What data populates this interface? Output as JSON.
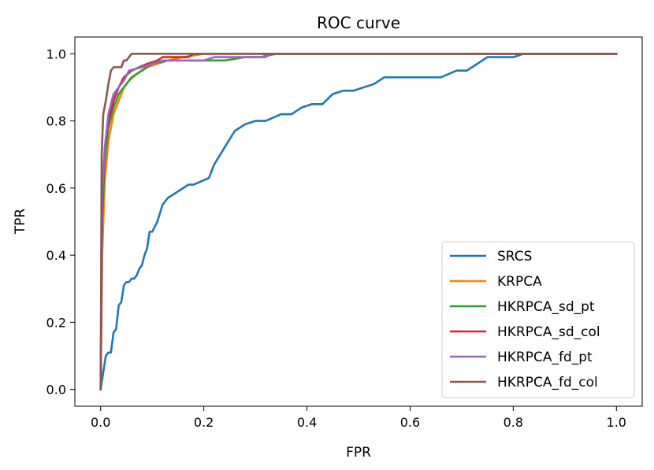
{
  "chart_data": {
    "type": "line",
    "title": "ROC curve",
    "xlabel": "FPR",
    "ylabel": "TPR",
    "xlim": [
      -0.05,
      1.05
    ],
    "ylim": [
      -0.05,
      1.05
    ],
    "xticks": [
      0.0,
      0.2,
      0.4,
      0.6,
      0.8,
      1.0
    ],
    "xtick_labels": [
      "0.0",
      "0.2",
      "0.4",
      "0.6",
      "0.8",
      "1.0"
    ],
    "yticks": [
      0.0,
      0.2,
      0.4,
      0.6,
      0.8,
      1.0
    ],
    "ytick_labels": [
      "0.0",
      "0.2",
      "0.4",
      "0.6",
      "0.8",
      "1.0"
    ],
    "grid": false,
    "legend_position": "lower-right",
    "series": [
      {
        "name": "SRCS",
        "color": "#1f77b4",
        "points": [
          [
            0,
            0
          ],
          [
            0.005,
            0.05
          ],
          [
            0.01,
            0.1
          ],
          [
            0.015,
            0.11
          ],
          [
            0.02,
            0.11
          ],
          [
            0.025,
            0.17
          ],
          [
            0.03,
            0.18
          ],
          [
            0.035,
            0.25
          ],
          [
            0.04,
            0.26
          ],
          [
            0.045,
            0.31
          ],
          [
            0.05,
            0.32
          ],
          [
            0.055,
            0.32
          ],
          [
            0.06,
            0.33
          ],
          [
            0.065,
            0.33
          ],
          [
            0.07,
            0.34
          ],
          [
            0.075,
            0.36
          ],
          [
            0.08,
            0.37
          ],
          [
            0.085,
            0.4
          ],
          [
            0.09,
            0.42
          ],
          [
            0.095,
            0.47
          ],
          [
            0.1,
            0.47
          ],
          [
            0.11,
            0.5
          ],
          [
            0.12,
            0.55
          ],
          [
            0.13,
            0.57
          ],
          [
            0.14,
            0.58
          ],
          [
            0.16,
            0.6
          ],
          [
            0.17,
            0.61
          ],
          [
            0.18,
            0.61
          ],
          [
            0.21,
            0.63
          ],
          [
            0.22,
            0.67
          ],
          [
            0.24,
            0.72
          ],
          [
            0.26,
            0.77
          ],
          [
            0.28,
            0.79
          ],
          [
            0.3,
            0.8
          ],
          [
            0.32,
            0.8
          ],
          [
            0.35,
            0.82
          ],
          [
            0.37,
            0.82
          ],
          [
            0.39,
            0.84
          ],
          [
            0.41,
            0.85
          ],
          [
            0.43,
            0.85
          ],
          [
            0.45,
            0.88
          ],
          [
            0.47,
            0.89
          ],
          [
            0.49,
            0.89
          ],
          [
            0.51,
            0.9
          ],
          [
            0.53,
            0.91
          ],
          [
            0.55,
            0.93
          ],
          [
            0.6,
            0.93
          ],
          [
            0.66,
            0.93
          ],
          [
            0.69,
            0.95
          ],
          [
            0.71,
            0.95
          ],
          [
            0.73,
            0.97
          ],
          [
            0.75,
            0.99
          ],
          [
            0.8,
            0.99
          ],
          [
            0.82,
            1.0
          ],
          [
            1.0,
            1.0
          ]
        ]
      },
      {
        "name": "KRPCA",
        "color": "#ff7f0e",
        "points": [
          [
            0,
            0
          ],
          [
            0.003,
            0.4
          ],
          [
            0.008,
            0.62
          ],
          [
            0.015,
            0.74
          ],
          [
            0.025,
            0.82
          ],
          [
            0.035,
            0.86
          ],
          [
            0.045,
            0.9
          ],
          [
            0.055,
            0.92
          ],
          [
            0.07,
            0.94
          ],
          [
            0.09,
            0.96
          ],
          [
            0.11,
            0.97
          ],
          [
            0.13,
            0.98
          ],
          [
            0.16,
            0.99
          ],
          [
            0.2,
            1.0
          ],
          [
            1.0,
            1.0
          ]
        ]
      },
      {
        "name": "HKRPCA_sd_pt",
        "color": "#2ca02c",
        "points": [
          [
            0,
            0
          ],
          [
            0.003,
            0.5
          ],
          [
            0.008,
            0.68
          ],
          [
            0.015,
            0.78
          ],
          [
            0.025,
            0.84
          ],
          [
            0.035,
            0.88
          ],
          [
            0.045,
            0.9
          ],
          [
            0.06,
            0.93
          ],
          [
            0.08,
            0.95
          ],
          [
            0.1,
            0.97
          ],
          [
            0.13,
            0.98
          ],
          [
            0.24,
            0.98
          ],
          [
            0.28,
            0.99
          ],
          [
            0.31,
            0.99
          ],
          [
            0.34,
            1.0
          ],
          [
            1.0,
            1.0
          ]
        ]
      },
      {
        "name": "HKRPCA_sd_col",
        "color": "#d62728",
        "points": [
          [
            0,
            0
          ],
          [
            0.003,
            0.55
          ],
          [
            0.008,
            0.72
          ],
          [
            0.015,
            0.8
          ],
          [
            0.025,
            0.86
          ],
          [
            0.035,
            0.9
          ],
          [
            0.045,
            0.93
          ],
          [
            0.06,
            0.95
          ],
          [
            0.075,
            0.96
          ],
          [
            0.09,
            0.97
          ],
          [
            0.11,
            0.98
          ],
          [
            0.12,
            0.99
          ],
          [
            0.17,
            0.99
          ],
          [
            0.18,
            1.0
          ],
          [
            1.0,
            1.0
          ]
        ]
      },
      {
        "name": "HKRPCA_fd_pt",
        "color": "#9467bd",
        "points": [
          [
            0,
            0
          ],
          [
            0.003,
            0.58
          ],
          [
            0.008,
            0.72
          ],
          [
            0.015,
            0.82
          ],
          [
            0.025,
            0.88
          ],
          [
            0.035,
            0.9
          ],
          [
            0.045,
            0.92
          ],
          [
            0.055,
            0.95
          ],
          [
            0.08,
            0.96
          ],
          [
            0.1,
            0.97
          ],
          [
            0.12,
            0.98
          ],
          [
            0.2,
            0.98
          ],
          [
            0.22,
            0.99
          ],
          [
            0.32,
            0.99
          ],
          [
            0.33,
            1.0
          ],
          [
            1.0,
            1.0
          ]
        ]
      },
      {
        "name": "HKRPCA_fd_col",
        "color": "#8c564b",
        "points": [
          [
            0,
            0
          ],
          [
            0.002,
            0.7
          ],
          [
            0.005,
            0.82
          ],
          [
            0.01,
            0.86
          ],
          [
            0.015,
            0.91
          ],
          [
            0.02,
            0.95
          ],
          [
            0.025,
            0.96
          ],
          [
            0.03,
            0.96
          ],
          [
            0.04,
            0.96
          ],
          [
            0.045,
            0.98
          ],
          [
            0.05,
            0.98
          ],
          [
            0.055,
            0.99
          ],
          [
            0.06,
            1.0
          ],
          [
            1.0,
            1.0
          ]
        ]
      }
    ]
  }
}
